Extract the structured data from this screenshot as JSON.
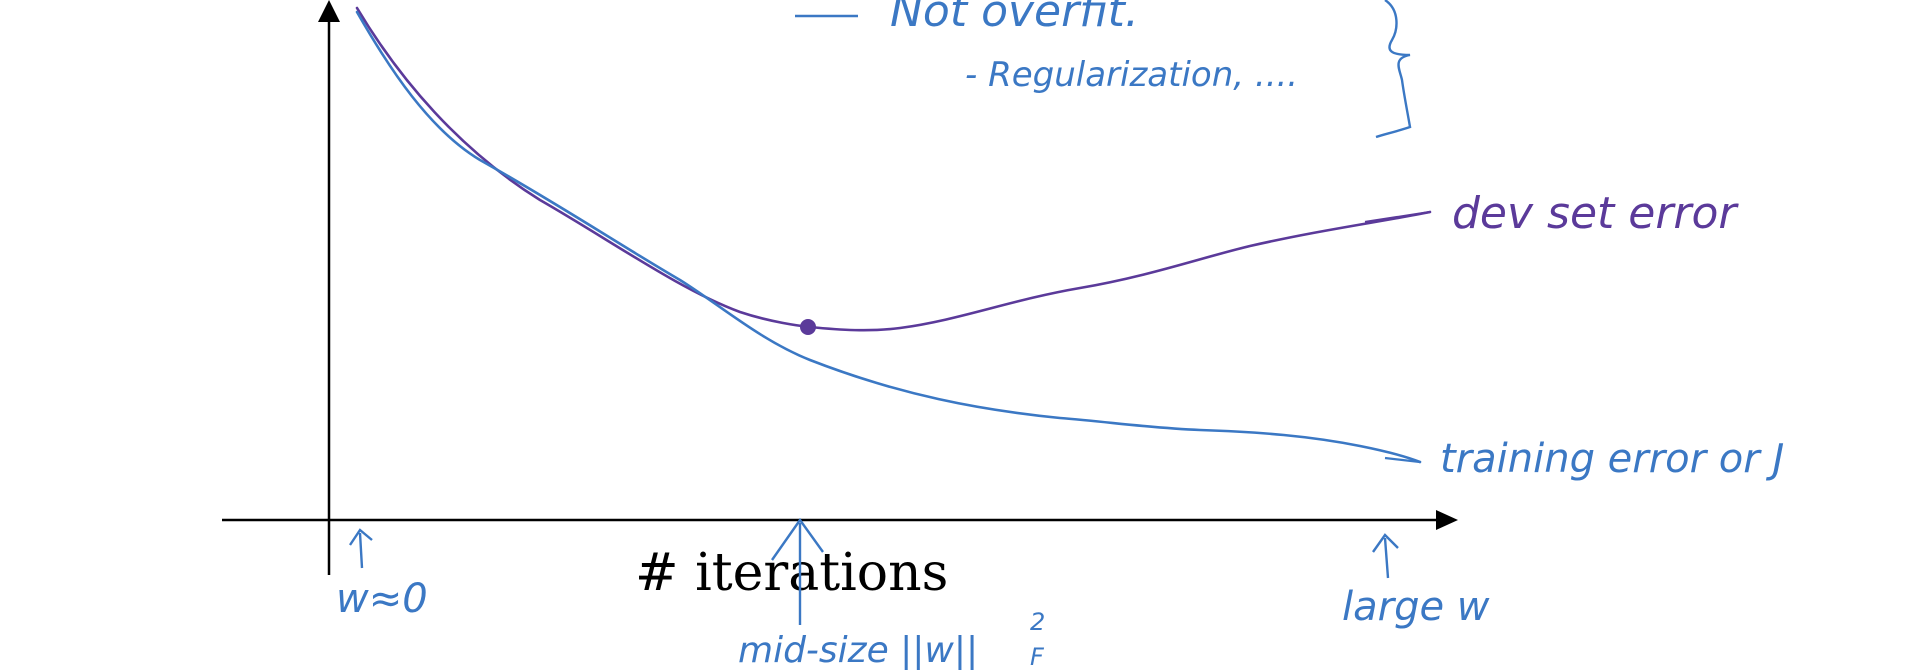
{
  "notes": {
    "not_overfit": "Not overfit.",
    "regularization": "- Regularization, ...."
  },
  "labels": {
    "dev_set_error": "dev set error",
    "training_error": "training error or J",
    "x_axis": "# iterations",
    "w_near_zero": "w≈0",
    "mid_size": "mid-size ||w||",
    "mid_size_sup": "2",
    "mid_size_sub": "F",
    "large_w": "large w"
  },
  "colors": {
    "dev_curve": "#5b3a9a",
    "train_curve": "#3b78c4",
    "axis": "#000000"
  },
  "marker": {
    "description_point": "minimum of dev set error at mid-size iterations"
  }
}
